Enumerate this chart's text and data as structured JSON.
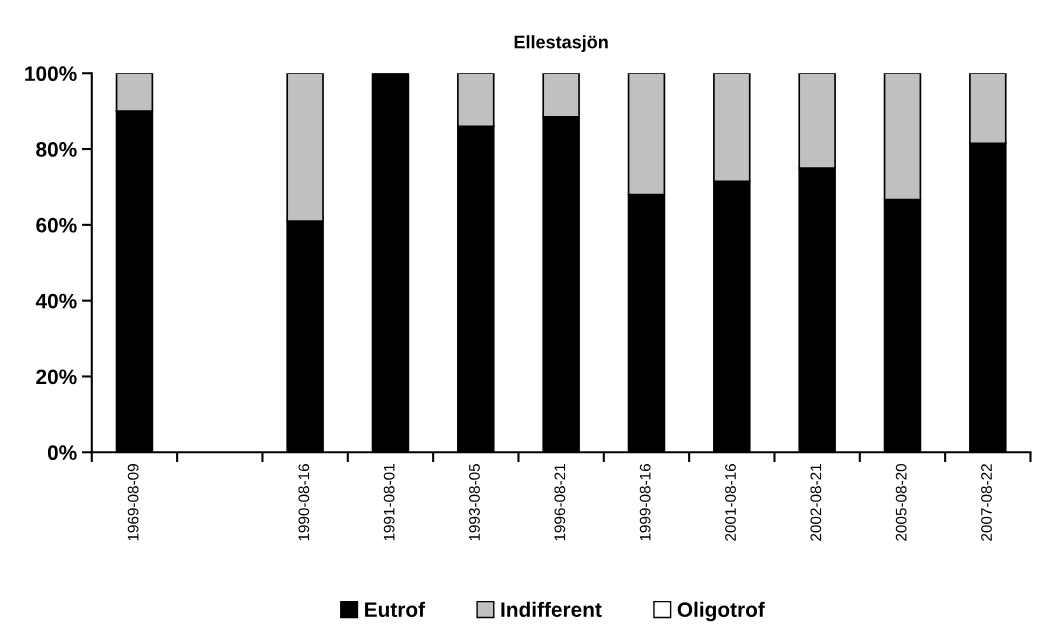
{
  "chart_data": {
    "type": "bar",
    "title": "Ellestasjön",
    "stacked": true,
    "categories": [
      "1969-08-09",
      null,
      "1990-08-16",
      "1991-08-01",
      "1993-08-05",
      "1996-08-21",
      "1999-08-16",
      "2001-08-16",
      "2002-08-21",
      "2005-08-20",
      "2007-08-22"
    ],
    "series": [
      {
        "name": "Eutrof",
        "color": "#000000",
        "values": [
          90,
          null,
          61,
          100,
          86,
          88.5,
          68,
          71.5,
          75,
          66.7,
          81.5
        ]
      },
      {
        "name": "Indifferent",
        "color": "#c0c0c0",
        "values": [
          10,
          null,
          39,
          0,
          14,
          11.5,
          32,
          28.5,
          25,
          33.3,
          18.5
        ]
      },
      {
        "name": "Oligotrof",
        "color": "#ffffff",
        "values": [
          0,
          null,
          0,
          0,
          0,
          0,
          0,
          0,
          0,
          0,
          0
        ]
      }
    ],
    "ylim": [
      0,
      100
    ],
    "yticks": [
      {
        "value": 0,
        "label": "0%"
      },
      {
        "value": 20,
        "label": "20%"
      },
      {
        "value": 40,
        "label": "40%"
      },
      {
        "value": 60,
        "label": "60%"
      },
      {
        "value": 80,
        "label": "80%"
      },
      {
        "value": 100,
        "label": "100%"
      }
    ],
    "grid": false,
    "legend": "bottom"
  }
}
